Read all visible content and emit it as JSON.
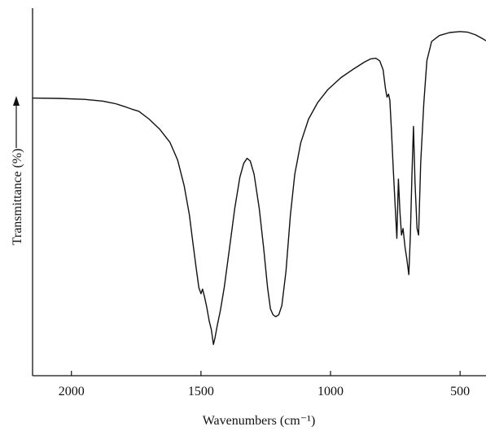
{
  "chart_data": {
    "type": "line",
    "title": "",
    "xlabel": "Wavenumbers (cm⁻¹)",
    "ylabel": "Transmittance (%)",
    "ylabel_arrow": true,
    "x_reversed": true,
    "xlim": [
      2150,
      400
    ],
    "ylim": [
      0,
      100
    ],
    "grid": false,
    "x_ticks": [
      {
        "value": 2000,
        "label": "2000"
      },
      {
        "value": 1500,
        "label": "1500"
      },
      {
        "value": 1000,
        "label": "1000"
      },
      {
        "value": 500,
        "label": "500"
      }
    ],
    "series": [
      {
        "name": "",
        "color": "#111111",
        "points": [
          [
            2150,
            79.6
          ],
          [
            2050,
            79.5
          ],
          [
            1950,
            79.2
          ],
          [
            1880,
            78.7
          ],
          [
            1830,
            77.9
          ],
          [
            1790,
            76.9
          ],
          [
            1765,
            76.2
          ],
          [
            1740,
            75.6
          ],
          [
            1700,
            73.2
          ],
          [
            1660,
            70.2
          ],
          [
            1620,
            66.2
          ],
          [
            1590,
            60.8
          ],
          [
            1565,
            53.0
          ],
          [
            1545,
            44.2
          ],
          [
            1530,
            35.0
          ],
          [
            1518,
            27.6
          ],
          [
            1508,
            22.0
          ],
          [
            1500,
            20.2
          ],
          [
            1494,
            21.6
          ],
          [
            1486,
            19.2
          ],
          [
            1478,
            16.2
          ],
          [
            1468,
            11.8
          ],
          [
            1460,
            9.3
          ],
          [
            1452,
            4.8
          ],
          [
            1446,
            6.8
          ],
          [
            1438,
            10.2
          ],
          [
            1425,
            15.2
          ],
          [
            1410,
            22.2
          ],
          [
            1390,
            34.0
          ],
          [
            1370,
            46.0
          ],
          [
            1350,
            55.5
          ],
          [
            1335,
            59.8
          ],
          [
            1322,
            61.3
          ],
          [
            1310,
            60.5
          ],
          [
            1295,
            56.5
          ],
          [
            1275,
            46.0
          ],
          [
            1258,
            34.0
          ],
          [
            1243,
            22.0
          ],
          [
            1232,
            15.6
          ],
          [
            1222,
            13.8
          ],
          [
            1212,
            13.2
          ],
          [
            1200,
            13.8
          ],
          [
            1188,
            16.6
          ],
          [
            1172,
            27.0
          ],
          [
            1155,
            44.0
          ],
          [
            1138,
            56.5
          ],
          [
            1115,
            66.0
          ],
          [
            1085,
            73.2
          ],
          [
            1050,
            78.2
          ],
          [
            1010,
            82.2
          ],
          [
            960,
            85.8
          ],
          [
            910,
            88.5
          ],
          [
            870,
            90.5
          ],
          [
            845,
            91.5
          ],
          [
            825,
            91.7
          ],
          [
            810,
            90.9
          ],
          [
            797,
            88.2
          ],
          [
            788,
            82.5
          ],
          [
            782,
            79.9
          ],
          [
            776,
            80.8
          ],
          [
            771,
            79.0
          ],
          [
            765,
            70.0
          ],
          [
            758,
            58.0
          ],
          [
            750,
            46.0
          ],
          [
            744,
            37.0
          ],
          [
            738,
            55.0
          ],
          [
            732,
            45.0
          ],
          [
            726,
            38.0
          ],
          [
            720,
            40.0
          ],
          [
            712,
            34.0
          ],
          [
            706,
            31.0
          ],
          [
            698,
            26.0
          ],
          [
            692,
            38.0
          ],
          [
            686,
            56.0
          ],
          [
            680,
            71.0
          ],
          [
            674,
            54.0
          ],
          [
            666,
            40.0
          ],
          [
            660,
            38.0
          ],
          [
            652,
            60.0
          ],
          [
            640,
            78.0
          ],
          [
            628,
            91.0
          ],
          [
            610,
            96.8
          ],
          [
            580,
            98.6
          ],
          [
            540,
            99.5
          ],
          [
            500,
            99.8
          ],
          [
            470,
            99.6
          ],
          [
            440,
            98.8
          ],
          [
            410,
            97.5
          ],
          [
            400,
            97.0
          ]
        ]
      }
    ]
  }
}
